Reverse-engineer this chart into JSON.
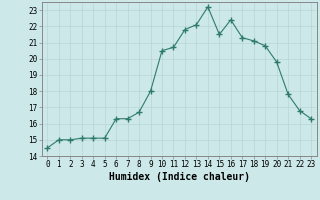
{
  "x": [
    0,
    1,
    2,
    3,
    4,
    5,
    6,
    7,
    8,
    9,
    10,
    11,
    12,
    13,
    14,
    15,
    16,
    17,
    18,
    19,
    20,
    21,
    22,
    23
  ],
  "y": [
    14.5,
    15.0,
    15.0,
    15.1,
    15.1,
    15.1,
    16.3,
    16.3,
    16.7,
    18.0,
    20.5,
    20.7,
    21.8,
    22.1,
    23.2,
    21.5,
    22.4,
    21.3,
    21.1,
    20.8,
    19.8,
    17.8,
    16.8,
    16.3
  ],
  "line_color": "#2e7b6e",
  "marker": "+",
  "marker_size": 4,
  "bg_color": "#cce8e8",
  "grid_color": "#b8d4d4",
  "xlabel": "Humidex (Indice chaleur)",
  "xlim": [
    -0.5,
    23.5
  ],
  "ylim": [
    14,
    23.5
  ],
  "yticks": [
    14,
    15,
    16,
    17,
    18,
    19,
    20,
    21,
    22,
    23
  ],
  "xticks": [
    0,
    1,
    2,
    3,
    4,
    5,
    6,
    7,
    8,
    9,
    10,
    11,
    12,
    13,
    14,
    15,
    16,
    17,
    18,
    19,
    20,
    21,
    22,
    23
  ],
  "tick_fontsize": 5.5,
  "xlabel_fontsize": 7.0,
  "label_color": "#000000",
  "spine_color": "#888888",
  "linewidth": 0.8,
  "grid_linewidth": 0.5
}
